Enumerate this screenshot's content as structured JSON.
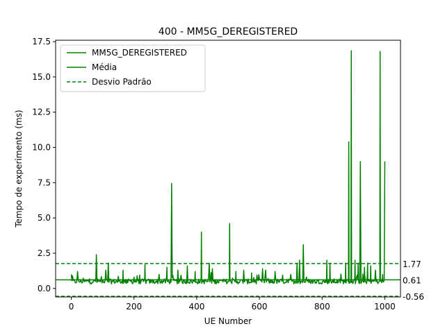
{
  "chart_data": {
    "type": "line",
    "title": "400 - MM5G_DEREGISTERED",
    "xlabel": "UE Number",
    "ylabel": "Tempo de experimento (ms)",
    "xlim": [
      -50,
      1050
    ],
    "ylim": [
      -0.6,
      17.6
    ],
    "xticks": [
      0,
      200,
      400,
      600,
      800,
      1000
    ],
    "yticks": [
      0.0,
      2.5,
      5.0,
      7.5,
      10.0,
      12.5,
      15.0,
      17.5
    ],
    "ytick_labels": [
      "0.0",
      "2.5",
      "5.0",
      "7.5",
      "10.0",
      "12.5",
      "15.0",
      "17.5"
    ],
    "grid": false,
    "legend_position": "upper-left",
    "color": "#008000",
    "series": [
      {
        "name": "MM5G_DEREGISTERED",
        "style": "solid",
        "baseline": 0.5,
        "spikes": [
          [
            0,
            1.0
          ],
          [
            20,
            1.2
          ],
          [
            80,
            2.4
          ],
          [
            110,
            1.3
          ],
          [
            118,
            1.8
          ],
          [
            165,
            1.3
          ],
          [
            200,
            0.8
          ],
          [
            235,
            1.7
          ],
          [
            280,
            1.0
          ],
          [
            305,
            1.5
          ],
          [
            320,
            7.45
          ],
          [
            340,
            1.3
          ],
          [
            370,
            1.6
          ],
          [
            395,
            1.2
          ],
          [
            415,
            4.0
          ],
          [
            440,
            1.8
          ],
          [
            450,
            1.4
          ],
          [
            505,
            4.6
          ],
          [
            525,
            1.2
          ],
          [
            550,
            1.3
          ],
          [
            575,
            1.1
          ],
          [
            610,
            1.4
          ],
          [
            620,
            1.3
          ],
          [
            650,
            1.2
          ],
          [
            700,
            1.0
          ],
          [
            720,
            1.8
          ],
          [
            728,
            2.0
          ],
          [
            740,
            3.1
          ],
          [
            815,
            2.0
          ],
          [
            825,
            1.8
          ],
          [
            875,
            1.8
          ],
          [
            885,
            10.4
          ],
          [
            893,
            16.85
          ],
          [
            905,
            2.0
          ],
          [
            915,
            1.8
          ],
          [
            922,
            9.0
          ],
          [
            935,
            1.5
          ],
          [
            945,
            1.8
          ],
          [
            955,
            1.6
          ],
          [
            970,
            1.3
          ],
          [
            985,
            16.8
          ],
          [
            993,
            1.0
          ],
          [
            1000,
            9.0
          ]
        ]
      },
      {
        "name": "Média",
        "style": "solid",
        "value": 0.61
      },
      {
        "name": "Desvio Padrão",
        "style": "dashed",
        "values": [
          1.77,
          -0.56
        ]
      }
    ],
    "annotations": [
      "1.77",
      "0.61",
      "-0.56"
    ]
  }
}
